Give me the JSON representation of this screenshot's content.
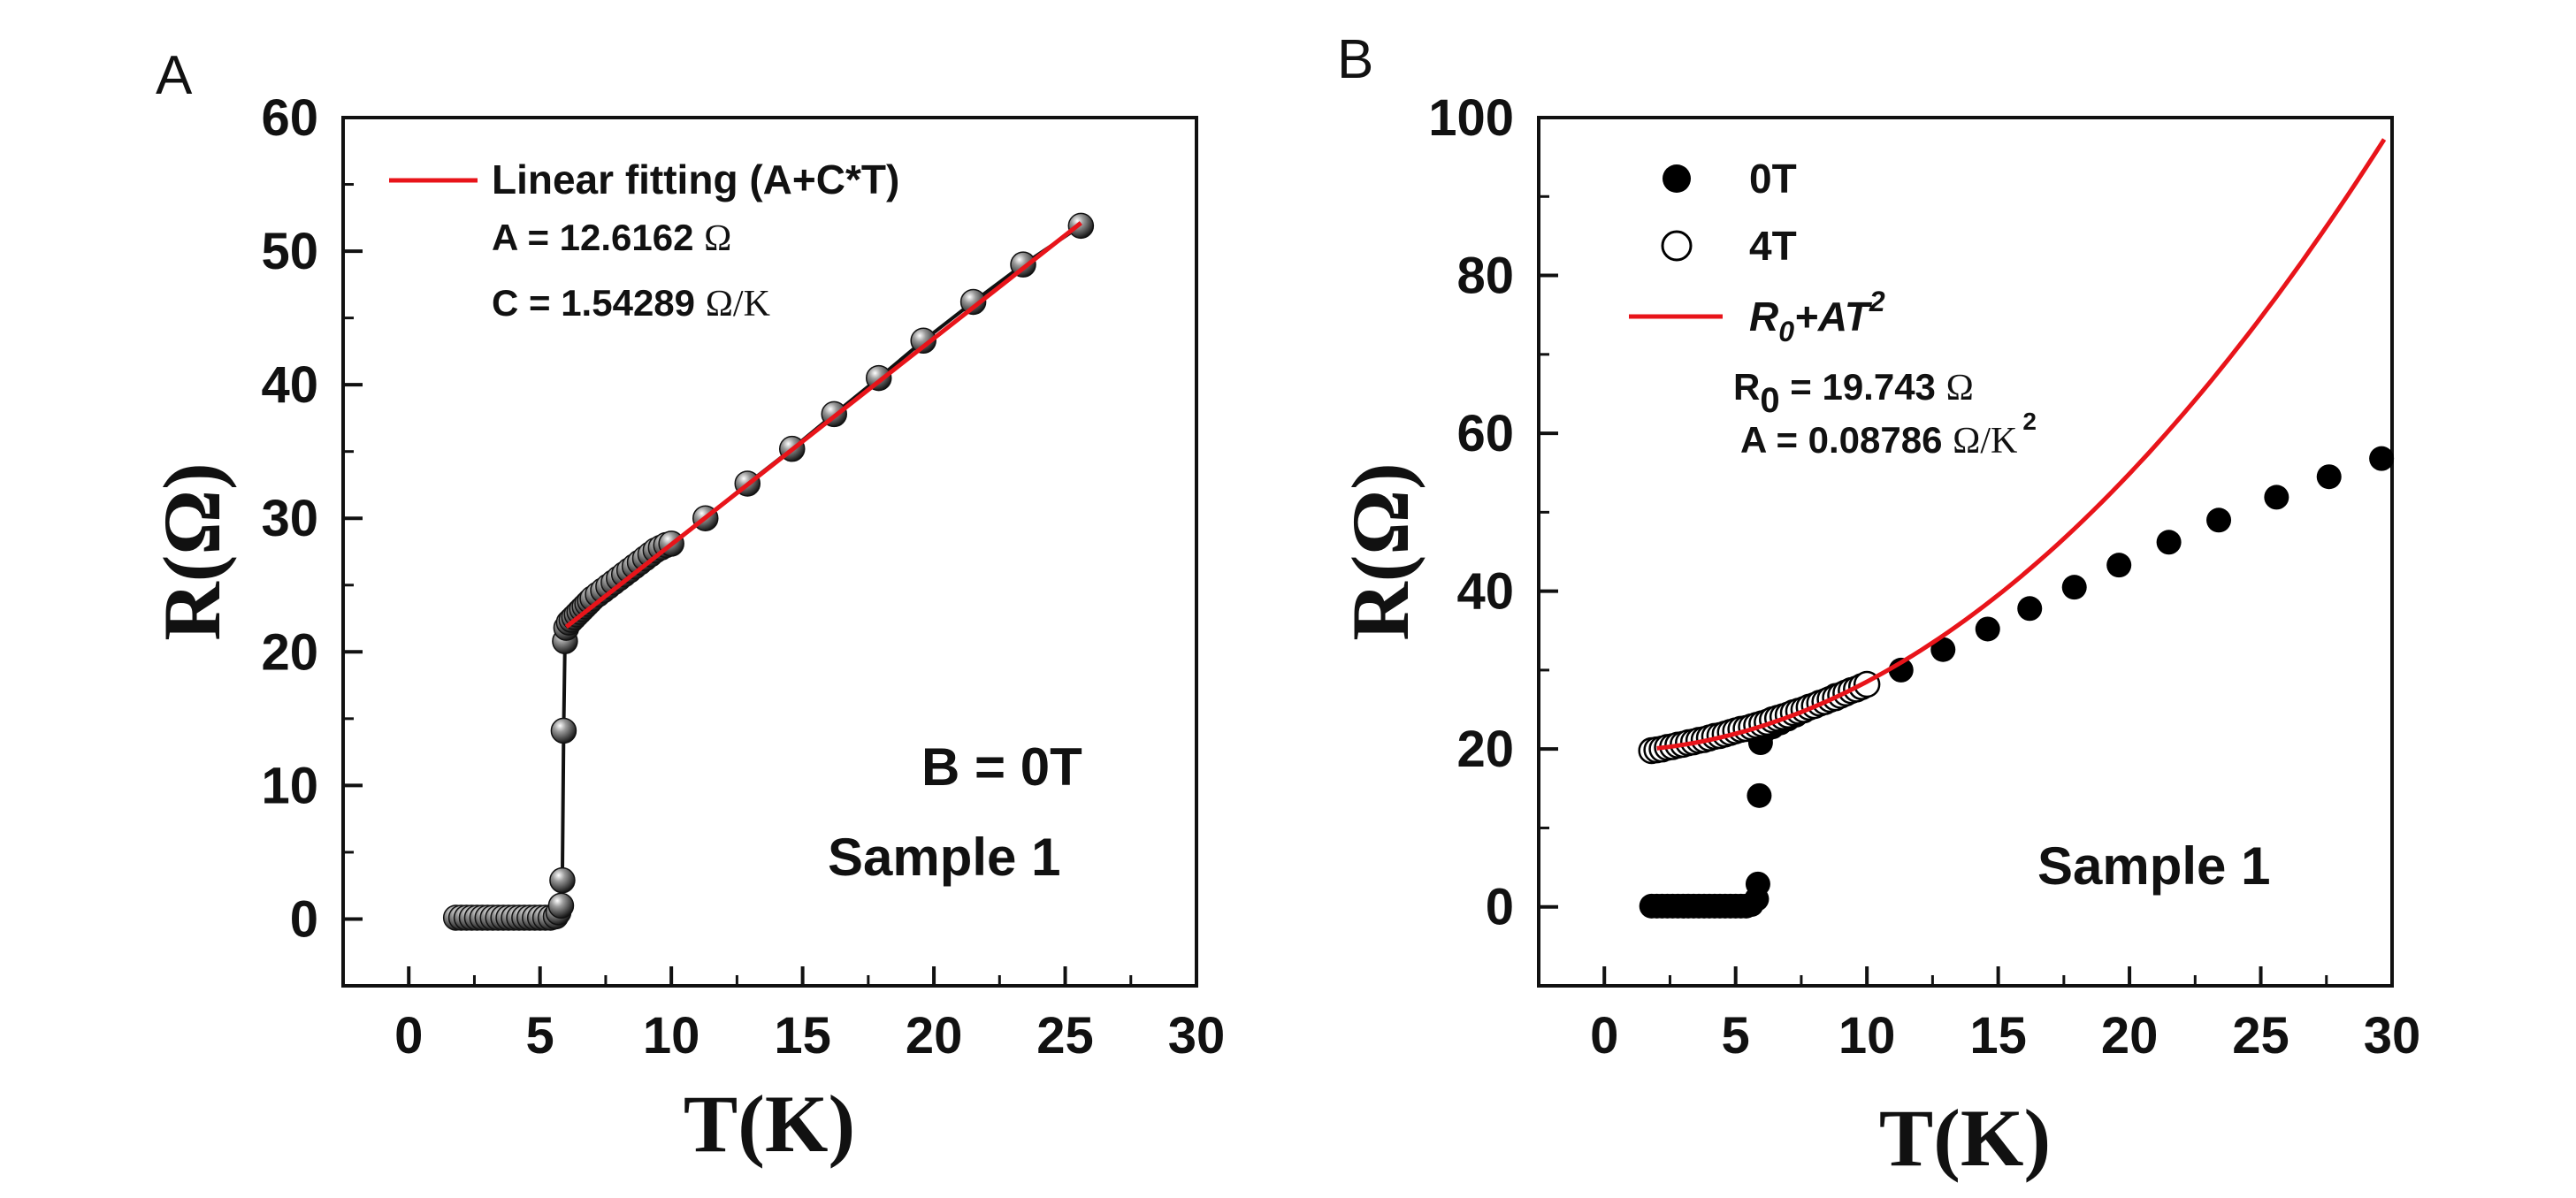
{
  "chart_data": [
    {
      "type": "scatter",
      "panel": "A",
      "xlabel": "T(K)",
      "ylabel": "R(Ω)",
      "xlim": [
        -2.5,
        30
      ],
      "ylim": [
        -5,
        60
      ],
      "xticks": [
        0,
        5,
        10,
        15,
        20,
        25,
        30
      ],
      "yticks": [
        0,
        10,
        20,
        30,
        40,
        50,
        60
      ],
      "legend_placement": "top-left",
      "legend": {
        "label": "Linear fitting (A+C*T)",
        "color": "#e8141a"
      },
      "annotations": {
        "a_text": "A = 12.6162 ",
        "a_unit": "Ω",
        "c_text": "C = 1.54289 ",
        "c_unit": "Ω/K",
        "b_field": "B = 0T",
        "sample": "Sample 1"
      },
      "series": [
        {
          "marker": "gray-sphere",
          "connect": true,
          "x": [
            1.8,
            2.0,
            2.2,
            2.4,
            2.6,
            2.8,
            3.0,
            3.2,
            3.4,
            3.6,
            3.8,
            4.0,
            4.2,
            4.4,
            4.6,
            4.8,
            5.0,
            5.2,
            5.4,
            5.6,
            5.7,
            5.8,
            5.85,
            5.9,
            5.95,
            6.0,
            6.1,
            6.2,
            6.3,
            6.4,
            6.5,
            6.6,
            6.7,
            6.8,
            6.9,
            7.0,
            7.2,
            7.4,
            7.6,
            7.8,
            8.0,
            8.2,
            8.4,
            8.6,
            8.8,
            9.0,
            9.2,
            9.4,
            9.6,
            9.8,
            10.0,
            11.3,
            12.9,
            14.6,
            16.2,
            17.9,
            19.6,
            21.5,
            23.4,
            25.6
          ],
          "y": [
            0.1,
            0.1,
            0.1,
            0.1,
            0.1,
            0.1,
            0.1,
            0.1,
            0.1,
            0.1,
            0.1,
            0.1,
            0.1,
            0.1,
            0.1,
            0.1,
            0.1,
            0.1,
            0.1,
            0.2,
            0.5,
            1.0,
            2.9,
            14.1,
            20.8,
            21.8,
            22.2,
            22.4,
            22.6,
            22.8,
            23.0,
            23.2,
            23.4,
            23.6,
            23.8,
            24.0,
            24.3,
            24.6,
            24.9,
            25.2,
            25.5,
            25.8,
            26.1,
            26.4,
            26.7,
            27.0,
            27.3,
            27.6,
            27.8,
            28.0,
            28.1,
            30.0,
            32.6,
            35.2,
            37.8,
            40.5,
            43.3,
            46.2,
            49.0,
            51.9
          ]
        }
      ],
      "fit": {
        "color": "#e8141a",
        "x_start": 6.0,
        "x_end": 25.6,
        "A": 12.6162,
        "C": 1.54289
      }
    },
    {
      "type": "scatter",
      "panel": "B",
      "xlabel": "T(K)",
      "ylabel": "R(Ω)",
      "xlim": [
        -2.5,
        30
      ],
      "ylim": [
        -10,
        100
      ],
      "xticks": [
        0,
        5,
        10,
        15,
        20,
        25,
        30
      ],
      "yticks": [
        0,
        20,
        40,
        60,
        80,
        100
      ],
      "legend_placement": "top-left",
      "series": [
        {
          "name": "0T",
          "marker": "filled",
          "color": "#000000",
          "x": [
            1.8,
            2.0,
            2.2,
            2.4,
            2.6,
            2.8,
            3.0,
            3.2,
            3.4,
            3.6,
            3.8,
            4.0,
            4.2,
            4.4,
            4.6,
            4.8,
            5.0,
            5.2,
            5.4,
            5.6,
            5.8,
            5.85,
            5.9,
            5.95,
            6.1,
            6.4,
            6.7,
            7.0,
            7.3,
            7.6,
            7.9,
            8.2,
            8.5,
            8.8,
            9.1,
            9.4,
            9.7,
            10.0,
            11.3,
            12.9,
            14.6,
            16.2,
            17.9,
            19.6,
            21.5,
            23.4,
            25.6,
            27.6,
            29.6
          ],
          "y": [
            0.1,
            0.1,
            0.1,
            0.1,
            0.1,
            0.1,
            0.1,
            0.1,
            0.1,
            0.1,
            0.1,
            0.1,
            0.1,
            0.1,
            0.1,
            0.1,
            0.1,
            0.1,
            0.1,
            0.3,
            1.0,
            2.9,
            14.1,
            20.8,
            22.3,
            22.8,
            23.3,
            23.8,
            24.3,
            24.8,
            25.3,
            25.8,
            26.3,
            26.8,
            27.1,
            27.5,
            27.8,
            28.1,
            30.0,
            32.6,
            35.2,
            37.8,
            40.5,
            43.3,
            46.2,
            49.0,
            51.9,
            54.5,
            56.8
          ]
        },
        {
          "name": "4T",
          "marker": "open",
          "color": "#000000",
          "x": [
            1.8,
            2.0,
            2.2,
            2.4,
            2.6,
            2.8,
            3.0,
            3.2,
            3.4,
            3.6,
            3.8,
            4.0,
            4.2,
            4.4,
            4.6,
            4.8,
            5.0,
            5.2,
            5.4,
            5.6,
            5.8,
            6.0,
            6.2,
            6.4,
            6.6,
            6.8,
            7.0,
            7.2,
            7.4,
            7.6,
            7.8,
            8.0,
            8.2,
            8.4,
            8.6,
            8.8,
            9.0,
            9.2,
            9.4,
            9.6,
            9.8,
            10.0
          ],
          "y": [
            19.8,
            19.9,
            20.0,
            20.2,
            20.3,
            20.5,
            20.6,
            20.8,
            20.9,
            21.1,
            21.2,
            21.4,
            21.6,
            21.7,
            21.9,
            22.1,
            22.3,
            22.5,
            22.6,
            22.8,
            23.0,
            23.2,
            23.4,
            23.7,
            23.9,
            24.1,
            24.3,
            24.6,
            24.8,
            25.0,
            25.3,
            25.5,
            25.8,
            26.0,
            26.3,
            26.5,
            26.8,
            27.1,
            27.4,
            27.6,
            27.9,
            28.2
          ]
        }
      ],
      "fit": {
        "name_base": "R",
        "name_sub": "0",
        "name_rest": "+AT",
        "name_sup": "2",
        "color": "#e8141a",
        "x_start": 2.0,
        "x_end": 29.7,
        "R0": 19.743,
        "A": 0.08786
      },
      "annotations": {
        "r0_base": "R",
        "r0_sub": "0",
        "r0_text": " = 19.743 ",
        "r0_unit": "Ω",
        "a_text": "A = 0.08786 ",
        "a_unit": "Ω/K",
        "a_sup": "2",
        "sample": "Sample 1"
      }
    }
  ]
}
